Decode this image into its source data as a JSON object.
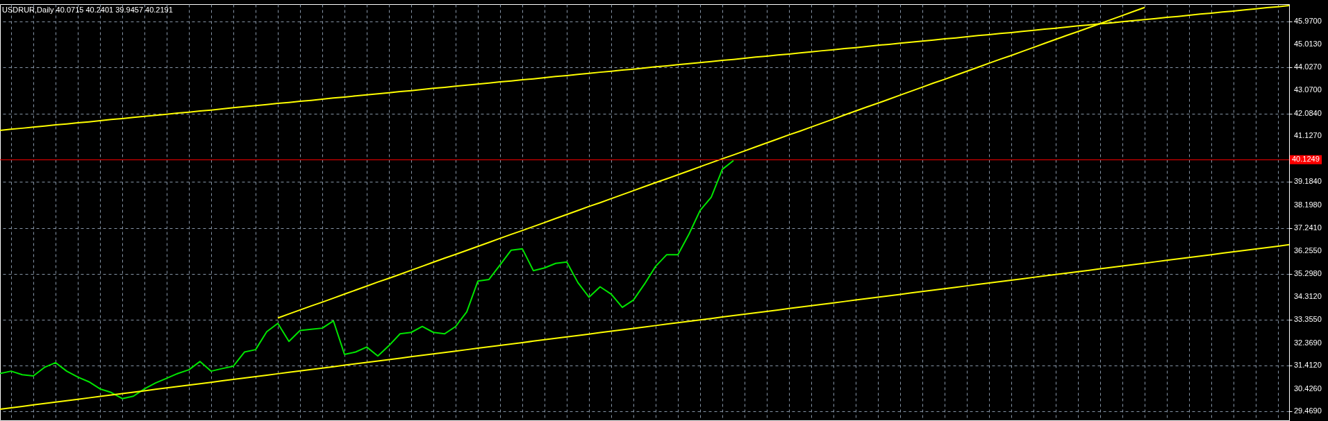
{
  "chart_data": {
    "type": "line",
    "title": "USDRUR,Daily  40.0715 40.2401 39.9457 40.2191",
    "categories": [
      null,
      null,
      null,
      null,
      null,
      null,
      null,
      null,
      null,
      null,
      null,
      null,
      null,
      null,
      null,
      null,
      null,
      null,
      null,
      null,
      null,
      null,
      null,
      null,
      null,
      null,
      null,
      null,
      null,
      null,
      null,
      null,
      null,
      null,
      null,
      null,
      null,
      null,
      null,
      null,
      null,
      null,
      null,
      null,
      null,
      null,
      null,
      null,
      null,
      null,
      null,
      null,
      null,
      null,
      null,
      null,
      null,
      null,
      null,
      null,
      null,
      null,
      null,
      null,
      null,
      null,
      null,
      null,
      null,
      null,
      null,
      null,
      null,
      null,
      null,
      null,
      null,
      null,
      null,
      null,
      null,
      null,
      null,
      null,
      null,
      null,
      null,
      null,
      null,
      null,
      null,
      null,
      null,
      null,
      null,
      null,
      null,
      null,
      null,
      null,
      null,
      null,
      null,
      null,
      null,
      null,
      null,
      null,
      null,
      null,
      null,
      null,
      null,
      null,
      null,
      null,
      null
    ],
    "ylim": [
      29.1,
      46.71
    ],
    "yticks": [
      {
        "value": 45.97,
        "label": "45.9700"
      },
      {
        "value": 45.013,
        "label": "45.0130"
      },
      {
        "value": 44.027,
        "label": "44.0270"
      },
      {
        "value": 43.07,
        "label": "43.0700"
      },
      {
        "value": 42.084,
        "label": "42.0840"
      },
      {
        "value": 41.127,
        "label": "41.1270"
      },
      {
        "value": 39.184,
        "label": "39.1840"
      },
      {
        "value": 38.198,
        "label": "38.1980"
      },
      {
        "value": 37.241,
        "label": "37.2410"
      },
      {
        "value": 36.255,
        "label": "36.2550"
      },
      {
        "value": 35.298,
        "label": "35.2980"
      },
      {
        "value": 34.312,
        "label": "34.3120"
      },
      {
        "value": 33.355,
        "label": "33.3550"
      },
      {
        "value": 32.369,
        "label": "32.3690"
      },
      {
        "value": 31.412,
        "label": "31.4120"
      },
      {
        "value": 30.426,
        "label": "30.4260"
      },
      {
        "value": 29.469,
        "label": "29.4690"
      }
    ],
    "tick_labels": "y",
    "grid": true,
    "series": [
      {
        "color": "#00e600",
        "values": [
          31.08,
          31.18,
          31.03,
          30.98,
          31.34,
          31.54,
          31.18,
          30.93,
          30.73,
          30.43,
          30.28,
          30.02,
          30.12,
          30.43,
          30.68,
          30.88,
          31.08,
          31.24,
          31.59,
          31.18,
          31.29,
          31.39,
          31.99,
          32.09,
          32.85,
          33.2,
          32.44,
          32.9,
          32.95,
          33.0,
          33.31,
          31.89,
          31.99,
          32.2,
          31.82,
          32.26,
          32.76,
          32.82,
          33.07,
          32.82,
          32.76,
          33.07,
          33.69,
          34.99,
          35.06,
          35.68,
          36.3,
          36.36,
          35.43,
          35.55,
          35.74,
          35.8,
          34.93,
          34.31,
          34.75,
          34.44,
          33.88,
          34.19,
          34.87,
          35.62,
          36.11,
          36.11,
          36.98,
          37.98,
          38.54,
          39.72,
          40.09,
          null,
          null,
          null,
          null,
          null,
          null,
          null,
          null,
          null,
          null,
          null,
          null,
          null,
          null,
          null,
          null,
          null,
          null,
          null,
          null,
          null,
          null,
          null,
          null,
          null,
          null,
          null,
          null,
          null,
          null,
          null,
          null,
          null,
          null,
          null,
          null,
          null,
          null,
          null,
          null,
          null,
          null,
          null,
          null,
          null,
          null,
          null,
          null,
          null,
          null
        ]
      },
      {
        "color": "#ffff00",
        "values": [
          41.37,
          41.42,
          41.46,
          41.51,
          41.55,
          41.6,
          41.64,
          41.69,
          41.73,
          41.78,
          41.83,
          41.87,
          41.92,
          41.96,
          42.01,
          42.05,
          42.1,
          42.14,
          42.19,
          42.23,
          42.28,
          42.33,
          42.37,
          42.42,
          42.46,
          42.51,
          42.55,
          42.6,
          42.64,
          42.69,
          42.74,
          42.78,
          42.83,
          42.87,
          42.92,
          42.96,
          43.01,
          43.05,
          43.1,
          43.15,
          43.19,
          43.24,
          43.28,
          43.33,
          43.37,
          43.42,
          43.46,
          43.51,
          43.55,
          43.6,
          43.65,
          43.69,
          43.74,
          43.78,
          43.83,
          43.87,
          43.92,
          43.96,
          44.01,
          44.06,
          44.1,
          44.15,
          44.19,
          44.24,
          44.28,
          44.33,
          44.37,
          44.42,
          44.47,
          44.51,
          44.56,
          44.6,
          44.65,
          44.69,
          44.74,
          44.78,
          44.83,
          44.87,
          44.92,
          44.97,
          45.01,
          45.06,
          45.1,
          45.15,
          45.19,
          45.24,
          45.28,
          45.33,
          45.38,
          45.42,
          45.47,
          45.51,
          45.56,
          45.6,
          45.65,
          45.69,
          45.74,
          45.79,
          45.83,
          45.88,
          45.92,
          45.97,
          46.01,
          46.06,
          46.1,
          46.15,
          46.19,
          46.24,
          46.29,
          46.33,
          46.38,
          46.42,
          46.47,
          46.51,
          46.56,
          46.6,
          46.65
        ]
      },
      {
        "color": "#ffff00",
        "values": [
          null,
          null,
          null,
          null,
          null,
          null,
          null,
          null,
          null,
          null,
          null,
          null,
          null,
          null,
          null,
          null,
          null,
          null,
          null,
          null,
          null,
          null,
          null,
          null,
          null,
          33.43,
          33.6,
          33.77,
          33.94,
          34.1,
          34.27,
          34.44,
          34.61,
          34.78,
          34.95,
          35.11,
          35.28,
          35.45,
          35.62,
          35.79,
          35.96,
          36.12,
          36.29,
          36.46,
          36.63,
          36.8,
          36.97,
          37.13,
          37.3,
          37.47,
          37.64,
          37.81,
          37.98,
          38.15,
          38.31,
          38.48,
          38.65,
          38.82,
          38.99,
          39.16,
          39.32,
          39.49,
          39.66,
          39.83,
          40.0,
          40.17,
          40.33,
          40.5,
          40.67,
          40.84,
          41.01,
          41.18,
          41.34,
          41.51,
          41.68,
          41.85,
          42.02,
          42.19,
          42.36,
          42.52,
          42.69,
          42.86,
          43.03,
          43.2,
          43.37,
          43.53,
          43.7,
          43.87,
          44.04,
          44.21,
          44.38,
          44.54,
          44.71,
          44.88,
          45.05,
          45.22,
          45.39,
          45.55,
          45.72,
          45.89,
          46.06,
          46.23,
          46.4,
          46.57,
          null,
          null,
          null,
          null,
          null,
          null,
          null,
          null,
          null,
          null,
          null,
          null,
          null
        ]
      },
      {
        "color": "#ffff00",
        "values": [
          29.57,
          29.63,
          29.69,
          29.75,
          29.81,
          29.87,
          29.93,
          29.99,
          30.05,
          30.11,
          30.17,
          30.23,
          30.29,
          30.35,
          30.41,
          30.47,
          30.53,
          30.59,
          30.65,
          30.71,
          30.77,
          30.83,
          30.89,
          30.95,
          31.01,
          31.07,
          31.13,
          31.19,
          31.25,
          31.31,
          31.37,
          31.43,
          31.49,
          31.55,
          31.61,
          31.67,
          31.73,
          31.79,
          31.85,
          31.91,
          31.97,
          32.03,
          32.09,
          32.15,
          32.21,
          32.27,
          32.33,
          32.39,
          32.45,
          32.51,
          32.57,
          32.63,
          32.69,
          32.75,
          32.81,
          32.87,
          32.93,
          32.99,
          33.05,
          33.11,
          33.17,
          33.23,
          33.29,
          33.35,
          33.41,
          33.47,
          33.53,
          33.59,
          33.65,
          33.71,
          33.77,
          33.83,
          33.89,
          33.95,
          34.01,
          34.07,
          34.13,
          34.19,
          34.25,
          34.31,
          34.37,
          34.43,
          34.49,
          34.55,
          34.61,
          34.67,
          34.73,
          34.79,
          34.85,
          34.91,
          34.97,
          35.03,
          35.09,
          35.15,
          35.21,
          35.27,
          35.33,
          35.39,
          35.45,
          35.51,
          35.57,
          35.63,
          35.69,
          35.75,
          35.81,
          35.87,
          35.93,
          35.99,
          36.05,
          36.11,
          36.17,
          36.23,
          36.29,
          36.35,
          36.41,
          36.47,
          36.53
        ]
      }
    ],
    "ref_lines": [
      {
        "axis": "y",
        "value": 40.1249,
        "label": "40.1249",
        "color": "#ff0000"
      }
    ]
  }
}
